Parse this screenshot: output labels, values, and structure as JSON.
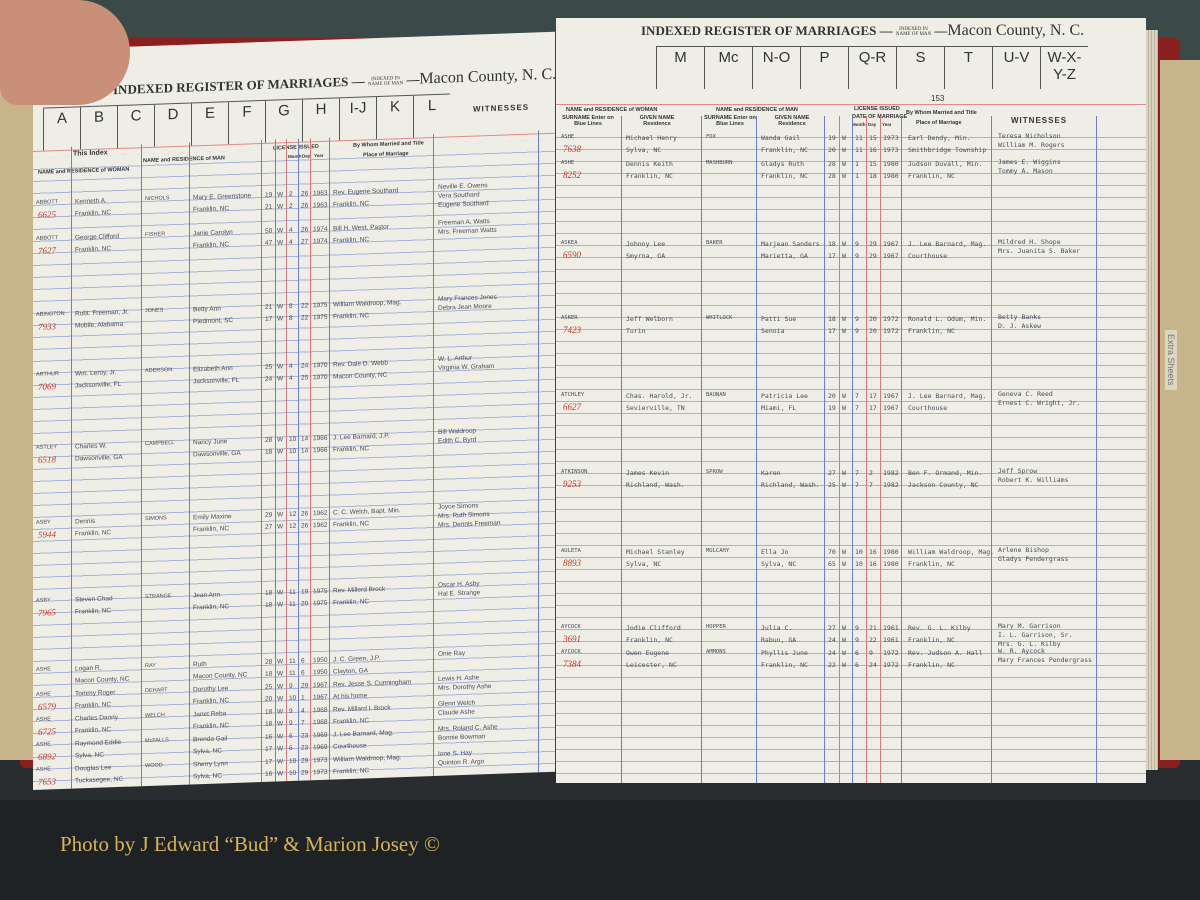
{
  "header": {
    "title": "INDEXED REGISTER OF MARRIAGES",
    "indexed_in": "INDEXED IN",
    "name_of": "NAME OF",
    "man": "MAN",
    "county": "Macon County, N. C.",
    "left_letters": [
      "A",
      "B",
      "C",
      "D",
      "E",
      "F",
      "G",
      "H",
      "I-J",
      "K",
      "L"
    ],
    "right_letters": [
      "M",
      "Mc",
      "N-O",
      "P",
      "Q-R",
      "S",
      "T",
      "U-V",
      "W-X-Y-Z"
    ],
    "page_number": "153",
    "this_index": "This Index"
  },
  "columns": {
    "woman": "NAME and RESIDENCE of WOMAN",
    "woman_surname": "SURNAME Enter on Blue Lines",
    "woman_given": "GIVEN NAME Residence",
    "man": "NAME and RESIDENCE of MAN",
    "man_surname": "SURNAME Enter on Blue Lines",
    "man_given": "GIVEN NAME Residence",
    "age": "Age",
    "color": "Color",
    "license": "LICENSE ISSUED",
    "date": "DATE OF MARRIAGE",
    "month": "Month",
    "day": "Day",
    "year": "Year",
    "by_whom": "By Whom Married and Title",
    "place": "Place of Marriage",
    "witnesses": "WITNESSES"
  },
  "left_entries": [
    {
      "wsur": "ABBOTT",
      "num": "6625",
      "wgiv": [
        "Kenneth A.",
        "Franklin, NC"
      ],
      "msur": "NICHOLS",
      "mgiv": [
        "Mary E. Greenstone",
        "Franklin, NC"
      ],
      "age": [
        "19",
        "21"
      ],
      "color": [
        "W",
        "W"
      ],
      "month": [
        "2",
        "2"
      ],
      "day": [
        "26",
        "26"
      ],
      "year": [
        "1963",
        "1963"
      ],
      "place": [
        "Rev. Eugene Southard",
        "Franklin, NC"
      ],
      "wit": [
        "Neville E. Owens",
        "Vera Southard",
        "Eugene Southard"
      ]
    },
    {
      "wsur": "ABBOTT",
      "num": "7627",
      "wgiv": [
        "George Clifford",
        "Franklin, NC"
      ],
      "msur": "FISHER",
      "mgiv": [
        "Janie Carolyn",
        "Franklin, NC"
      ],
      "age": [
        "50",
        "47"
      ],
      "color": [
        "W",
        "W"
      ],
      "month": [
        "4",
        "4"
      ],
      "day": [
        "26",
        "27"
      ],
      "year": [
        "1974",
        "1974"
      ],
      "place": [
        "Bill H. West, Pastor",
        "Franklin, NC"
      ],
      "wit": [
        "Freeman A. Watts",
        "Mrs. Freeman Watts"
      ]
    },
    {
      "wsur": "ABINGTON",
      "num": "7933",
      "wgiv": [
        "Robt. Freeman, Jr.",
        "Mobile, Alabama"
      ],
      "msur": "JONES",
      "mgiv": [
        "Betty Ann",
        "Piedmont, SC"
      ],
      "age": [
        "21",
        "17"
      ],
      "color": [
        "W",
        "W"
      ],
      "month": [
        "8",
        "8"
      ],
      "day": [
        "22",
        "22"
      ],
      "year": [
        "1975",
        "1975"
      ],
      "place": [
        "William Waldroop, Mag.",
        "Franklin, NC"
      ],
      "wit": [
        "Mary Frances Jones",
        "Debra Jean Moore"
      ]
    },
    {
      "wsur": "ARTHUR",
      "num": "7069",
      "wgiv": [
        "Wm. Leroy, Jr.",
        "Jacksonville, FL"
      ],
      "msur": "ADERSON",
      "mgiv": [
        "Elizabeth Ann",
        "Jacksonville, FL"
      ],
      "age": [
        "25",
        "24"
      ],
      "color": [
        "W",
        "W"
      ],
      "month": [
        "4",
        "4"
      ],
      "day": [
        "24",
        "25"
      ],
      "year": [
        "1970",
        "1970"
      ],
      "place": [
        "Rev. Dale D. Webb",
        "Macon County, NC"
      ],
      "wit": [
        "W. L. Arthur",
        "Virginia W. Graham"
      ]
    },
    {
      "wsur": "ASTLEY",
      "num": "6518",
      "wgiv": [
        "Charles W.",
        "Dawsonville, GA"
      ],
      "msur": "CAMPBELL",
      "mgiv": [
        "Nancy June",
        "Dawsonville, GA"
      ],
      "age": [
        "28",
        "18"
      ],
      "color": [
        "W",
        "W"
      ],
      "month": [
        "10",
        "10"
      ],
      "day": [
        "14",
        "14"
      ],
      "year": [
        "1966",
        "1966"
      ],
      "place": [
        "J. Lee Barnard, J.P.",
        "Franklin, NC"
      ],
      "wit": [
        "Bill Waldroop",
        "Edith C. Byrd"
      ]
    },
    {
      "wsur": "ASBY",
      "num": "5944",
      "wgiv": [
        "Dennis",
        "Franklin, NC"
      ],
      "msur": "SIMONS",
      "mgiv": [
        "Emily Maxine",
        "Franklin, NC"
      ],
      "age": [
        "29",
        "27"
      ],
      "color": [
        "W",
        "W"
      ],
      "month": [
        "12",
        "12"
      ],
      "day": [
        "26",
        "26"
      ],
      "year": [
        "1962",
        "1962"
      ],
      "place": [
        "C. C. Welch, Bapt. Min.",
        "Franklin, NC"
      ],
      "wit": [
        "Joyce Simons",
        "Mrs. Ruth Simons",
        "Mrs. Dennis Freeman"
      ]
    },
    {
      "wsur": "ASBY",
      "num": "7965",
      "wgiv": [
        "Steven Chad",
        "Franklin, NC"
      ],
      "msur": "STRANGE",
      "mgiv": [
        "Jean Ann",
        "Franklin, NC"
      ],
      "age": [
        "18",
        "18"
      ],
      "color": [
        "W",
        "W"
      ],
      "month": [
        "11",
        "11"
      ],
      "day": [
        "19",
        "20"
      ],
      "year": [
        "1975",
        "1975"
      ],
      "place": [
        "Rev. Millerd Brock",
        "Franklin, NC"
      ],
      "wit": [
        "Oscar H. Asby",
        "Hal E. Strange"
      ]
    },
    {
      "wsur": "ASHE",
      "num": "",
      "wgiv": [
        "Logan R.",
        "Macon County, NC"
      ],
      "msur": "RAY",
      "mgiv": [
        "Ruth",
        "Macon County, NC"
      ],
      "age": [
        "28",
        "18"
      ],
      "color": [
        "W",
        "W"
      ],
      "month": [
        "11",
        "11"
      ],
      "day": [
        "6",
        "6"
      ],
      "year": [
        "1950",
        "1950"
      ],
      "place": [
        "J. C. Green, J.P.",
        "Clayton, GA"
      ],
      "wit": [
        "Onie Ray"
      ]
    },
    {
      "wsur": "ASHE",
      "num": "6579",
      "wgiv": [
        "Tommy Roger",
        "Franklin, NC"
      ],
      "msur": "DEHART",
      "mgiv": [
        "Dorothy Lee",
        "Franklin, NC"
      ],
      "age": [
        "25",
        "20"
      ],
      "color": [
        "W",
        "W"
      ],
      "month": [
        "9",
        "10"
      ],
      "day": [
        "29",
        "1"
      ],
      "year": [
        "1967",
        "1967"
      ],
      "place": [
        "Rev. Jesse S. Cunningham",
        "At his home"
      ],
      "wit": [
        "Lewis H. Ashe",
        "Mrs. Dorothy Ashe"
      ]
    },
    {
      "wsur": "ASHE",
      "num": "6725",
      "wgiv": [
        "Charles Danny",
        "Franklin, NC"
      ],
      "msur": "WELCH",
      "mgiv": [
        "Janet Reba",
        "Franklin, NC"
      ],
      "age": [
        "18",
        "18"
      ],
      "color": [
        "W",
        "W"
      ],
      "month": [
        "9",
        "9"
      ],
      "day": [
        "4",
        "7"
      ],
      "year": [
        "1968",
        "1968"
      ],
      "place": [
        "Rev. Millard I. Brock",
        "Franklin, NC"
      ],
      "wit": [
        "Glenn Welch",
        "Claude Ashe"
      ]
    },
    {
      "wsur": "ASHE",
      "num": "6892",
      "wgiv": [
        "Raymond Eddie",
        "Sylva, NC"
      ],
      "msur": "McFALLS",
      "mgiv": [
        "Brenda Gail",
        "Sylva, NC"
      ],
      "age": [
        "16",
        "17"
      ],
      "color": [
        "W",
        "W"
      ],
      "month": [
        "6",
        "6"
      ],
      "day": [
        "23",
        "23"
      ],
      "year": [
        "1969",
        "1969"
      ],
      "place": [
        "J. Lee Barnard, Mag.",
        "Courthouse"
      ],
      "wit": [
        "Mrs. Roland C. Ashe",
        "Bonnie Bowman"
      ]
    },
    {
      "wsur": "ASHE",
      "num": "7653",
      "wgiv": [
        "Douglas Lee",
        "Tuckasegee, NC"
      ],
      "msur": "WOOD",
      "mgiv": [
        "Sherry Lynn",
        "Sylva, NC"
      ],
      "age": [
        "17",
        "16"
      ],
      "color": [
        "W",
        "W"
      ],
      "month": [
        "10",
        "10"
      ],
      "day": [
        "29",
        "29"
      ],
      "year": [
        "1973",
        "1973"
      ],
      "place": [
        "William Waldroop, Mag.",
        "Franklin, NC"
      ],
      "wit": [
        "Ione S. Hay",
        "Quinton R. Argo"
      ]
    }
  ],
  "right_entries": [
    {
      "wsur": "ASHE",
      "num": "7638",
      "wgiv": [
        "Michael Henry",
        "Sylva, NC"
      ],
      "msur": "FOX",
      "mgiv": [
        "Wanda Gail",
        "Franklin, NC"
      ],
      "age": [
        "19",
        "20"
      ],
      "color": [
        "W",
        "W"
      ],
      "month": [
        "11",
        "11"
      ],
      "day": [
        "15",
        "16"
      ],
      "year": [
        "1973",
        "1973"
      ],
      "place": [
        "Earl Dendy, Min.",
        "Smithbridge Township"
      ],
      "wit": [
        "Teresa Nicholson",
        "William M. Rogers"
      ]
    },
    {
      "wsur": "ASHE",
      "num": "8252",
      "wgiv": [
        "Dennis Keith",
        "Franklin, NC"
      ],
      "msur": "MASHBURN",
      "mgiv": [
        "Gladys Ruth",
        "Franklin, NC"
      ],
      "age": [
        "28",
        "28"
      ],
      "color": [
        "W",
        "W"
      ],
      "month": [
        "1",
        "1"
      ],
      "day": [
        "15",
        "18"
      ],
      "year": [
        "1980",
        "1980"
      ],
      "place": [
        "Judson Duvall, Min.",
        "Franklin, NC"
      ],
      "wit": [
        "James E. Wiggins",
        "Tommy A. Mason"
      ]
    },
    {
      "wsur": "ASKEA",
      "num": "6590",
      "wgiv": [
        "Johnny Lee",
        "Smyrna, GA"
      ],
      "msur": "BAKER",
      "mgiv": [
        "Marjean Sanders",
        "Marietta, GA"
      ],
      "age": [
        "18",
        "17"
      ],
      "color": [
        "W",
        "W"
      ],
      "month": [
        "9",
        "9"
      ],
      "day": [
        "29",
        "29"
      ],
      "year": [
        "1967",
        "1967"
      ],
      "place": [
        "J. Lee Barnard, Mag.",
        "Courthouse"
      ],
      "wit": [
        "Mildred H. Shope",
        "Mrs. Juanita S. Baker"
      ]
    },
    {
      "wsur": "ASKER",
      "num": "7423",
      "wgiv": [
        "Jeff Welborn",
        "Turin"
      ],
      "msur": "WHITLOCK",
      "mgiv": [
        "Patti Sue",
        "Senoia"
      ],
      "age": [
        "18",
        "17"
      ],
      "color": [
        "W",
        "W"
      ],
      "month": [
        "9",
        "9"
      ],
      "day": [
        "20",
        "20"
      ],
      "year": [
        "1972",
        "1972"
      ],
      "place": [
        "Ronald L. Odum, Min.",
        "Franklin, NC"
      ],
      "wit": [
        "Betty Banks",
        "D. J. Askew"
      ]
    },
    {
      "wsur": "ATCHLEY",
      "num": "6627",
      "wgiv": [
        "Chas. Harold, Jr.",
        "Sevierville, TN"
      ],
      "msur": "BAUNAN",
      "mgiv": [
        "Patricia Lee",
        "Miami, FL"
      ],
      "age": [
        "20",
        "19"
      ],
      "color": [
        "W",
        "W"
      ],
      "month": [
        "7",
        "7"
      ],
      "day": [
        "17",
        "17"
      ],
      "year": [
        "1967",
        "1967"
      ],
      "place": [
        "J. Lee Barnard, Mag.",
        "Courthouse"
      ],
      "wit": [
        "Geneva C. Reed",
        "Ernest C. Wright, Jr."
      ]
    },
    {
      "wsur": "ATKINSON",
      "num": "9253",
      "wgiv": [
        "James Kevin",
        "Richland, Wash."
      ],
      "msur": "SPROW",
      "mgiv": [
        "Karen",
        "Richland, Wash."
      ],
      "age": [
        "27",
        "25"
      ],
      "color": [
        "W",
        "W"
      ],
      "month": [
        "7",
        "7"
      ],
      "day": [
        "2",
        "7"
      ],
      "year": [
        "1982",
        "1982"
      ],
      "place": [
        "Ben F. Ormand, Min.",
        "Jackson County, NC"
      ],
      "wit": [
        "Jeff Sprow",
        "Robert K. Williams"
      ]
    },
    {
      "wsur": "AULETA",
      "num": "8893",
      "wgiv": [
        "Michael Stanley",
        "Sylva, NC"
      ],
      "msur": "MULCAHY",
      "mgiv": [
        "Ella Jo",
        "Sylva, NC"
      ],
      "age": [
        "70",
        "65"
      ],
      "color": [
        "W",
        "W"
      ],
      "month": [
        "10",
        "10"
      ],
      "day": [
        "16",
        "16"
      ],
      "year": [
        "1980",
        "1980"
      ],
      "place": [
        "William Waldroop, Mag.",
        "Franklin, NC"
      ],
      "wit": [
        "Arlene Bishop",
        "Gladys Pendergrass"
      ]
    },
    {
      "wsur": "AYCOCK",
      "num": "3691",
      "wgiv": [
        "Jodie Clifford",
        "Franklin, NC"
      ],
      "msur": "HOPPER",
      "mgiv": [
        "Julia C.",
        "Rabun, GA"
      ],
      "age": [
        "27",
        "24"
      ],
      "color": [
        "W",
        "W"
      ],
      "month": [
        "9",
        "9"
      ],
      "day": [
        "21",
        "22"
      ],
      "year": [
        "1961",
        "1961"
      ],
      "place": [
        "Rev. G. L. Kilby",
        "Franklin, NC"
      ],
      "wit": [
        "Mary M. Garrison",
        "I. L. Garrison, Sr.",
        "Mrs. G. L. Kilby"
      ]
    },
    {
      "wsur": "AYCOCK",
      "num": "7384",
      "wgiv": [
        "Owen Eugene",
        "Leicester, NC"
      ],
      "msur": "AMMONS",
      "mgiv": [
        "Phyllis June",
        "Franklin, NC"
      ],
      "age": [
        "24",
        "22"
      ],
      "color": [
        "W",
        "W"
      ],
      "month": [
        "6",
        "6"
      ],
      "day": [
        "9",
        "24"
      ],
      "year": [
        "1972",
        "1972"
      ],
      "place": [
        "Rev. Judson A. Hall",
        "Franklin, NC"
      ],
      "wit": [
        "W. R. Aycock",
        "Mary Frances Pendergrass"
      ]
    }
  ],
  "side_tab": "Extra Sheets",
  "credit": "Photo by J Edward “Bud” & Marion Josey ©",
  "colors": {
    "ink": "#4a4a58",
    "red_number": "#c0392b",
    "blue_rule": "#6f7fc4",
    "red_rule": "#d47a7a",
    "credit": "#d7b25a"
  }
}
